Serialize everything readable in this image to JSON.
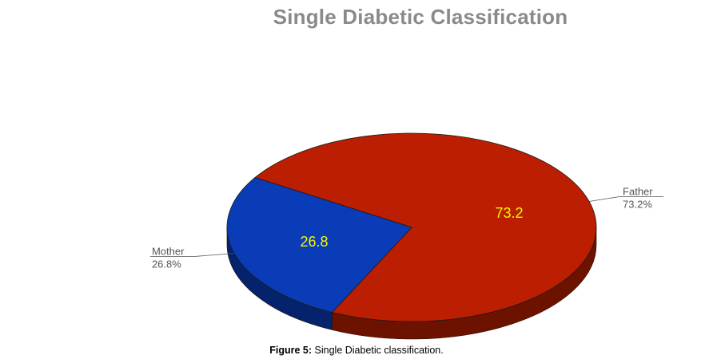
{
  "chart_data": {
    "type": "pie",
    "title": "Single Diabetic Classification",
    "categories": [
      "Father",
      "Mother"
    ],
    "values": [
      73.2,
      26.8
    ],
    "value_labels": [
      "73.2",
      "26.8"
    ],
    "percent_labels": [
      "73.2%",
      "26.8%"
    ],
    "colors": [
      "#bb1e00",
      "#0a3cb8"
    ],
    "side_colors": [
      "#6e1200",
      "#04236c"
    ],
    "style": "3d",
    "legend": "none"
  },
  "caption": {
    "prefix": "Figure 5:",
    "text": " Single Diabetic classification."
  }
}
